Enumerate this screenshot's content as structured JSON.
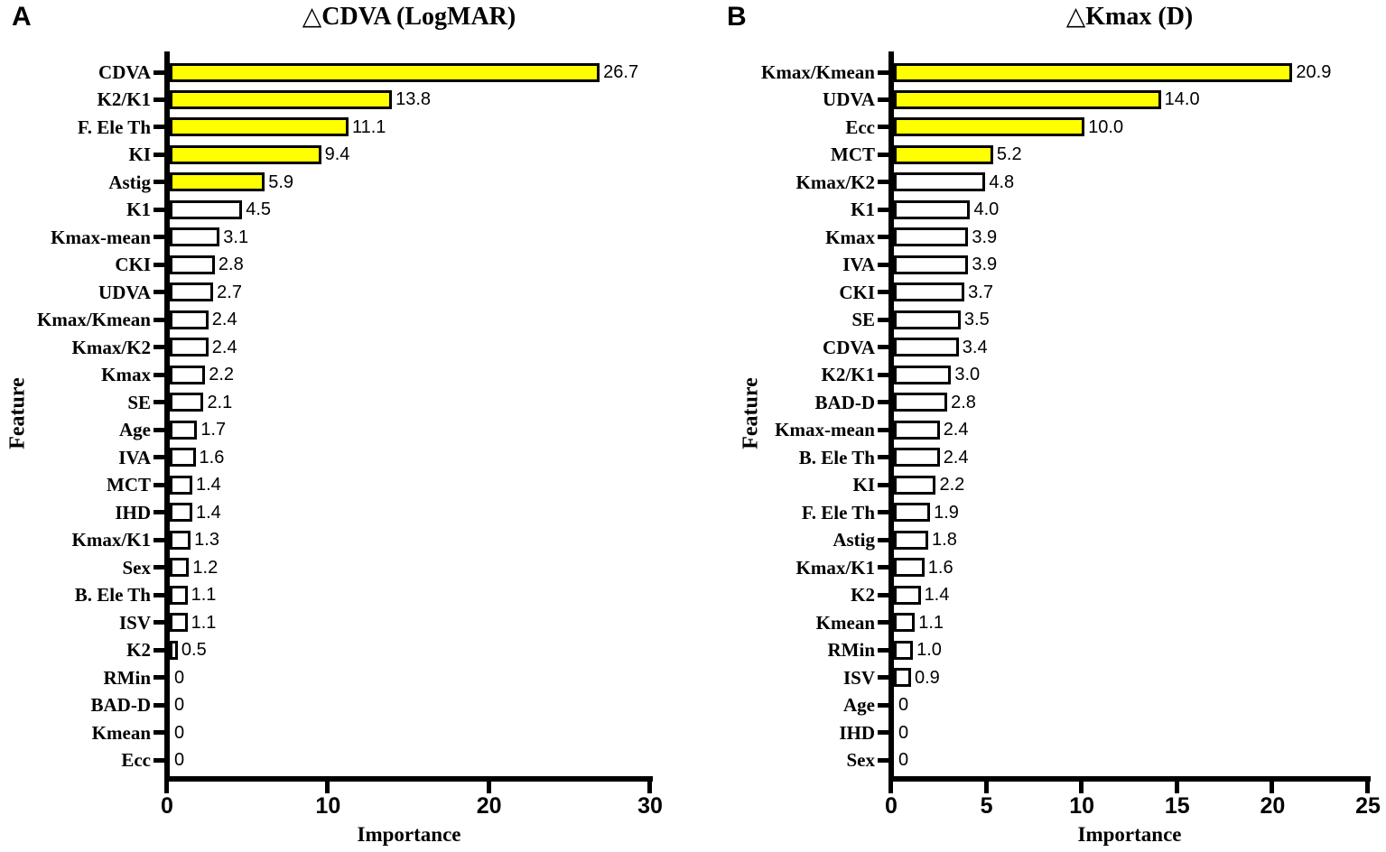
{
  "colors": {
    "highlight": "#FFFF00",
    "bar_fill": "#FFFFFF",
    "ink": "#000000",
    "background": "#FFFFFF"
  },
  "chart_data": [
    {
      "type": "bar",
      "orientation": "horizontal",
      "panel_label": "A",
      "title": "△CDVA (LogMAR)",
      "xlabel": "Importance",
      "ylabel": "Feature",
      "xlim": [
        0,
        30
      ],
      "x_tick_labels": [
        "0",
        "10",
        "20",
        "30"
      ],
      "grid": false,
      "legend": "none",
      "categories": [
        "CDVA",
        "K2/K1",
        "F. Ele Th",
        "KI",
        "Astig",
        "K1",
        "Kmax-mean",
        "CKI",
        "UDVA",
        "Kmax/Kmean",
        "Kmax/K2",
        "Kmax",
        "SE",
        "Age",
        "IVA",
        "MCT",
        "IHD",
        "Kmax/K1",
        "Sex",
        "B. Ele Th",
        "ISV",
        "K2",
        "RMin",
        "BAD-D",
        "Kmean",
        "Ecc"
      ],
      "values": [
        26.7,
        13.8,
        11.1,
        9.4,
        5.9,
        4.5,
        3.1,
        2.8,
        2.7,
        2.4,
        2.4,
        2.2,
        2.1,
        1.7,
        1.6,
        1.4,
        1.4,
        1.3,
        1.2,
        1.1,
        1.1,
        0.5,
        0,
        0,
        0,
        0
      ],
      "value_labels": [
        "26.7",
        "13.8",
        "11.1",
        "9.4",
        "5.9",
        "4.5",
        "3.1",
        "2.8",
        "2.7",
        "2.4",
        "2.4",
        "2.2",
        "2.1",
        "1.7",
        "1.6",
        "1.4",
        "1.4",
        "1.3",
        "1.2",
        "1.1",
        "1.1",
        "0.5",
        "0",
        "0",
        "0",
        "0"
      ],
      "highlighted": [
        true,
        true,
        true,
        true,
        true,
        false,
        false,
        false,
        false,
        false,
        false,
        false,
        false,
        false,
        false,
        false,
        false,
        false,
        false,
        false,
        false,
        false,
        false,
        false,
        false,
        false
      ]
    },
    {
      "type": "bar",
      "orientation": "horizontal",
      "panel_label": "B",
      "title": "△Kmax (D)",
      "xlabel": "Importance",
      "ylabel": "Feature",
      "xlim": [
        0,
        25
      ],
      "x_tick_labels": [
        "0",
        "5",
        "10",
        "15",
        "20",
        "25"
      ],
      "grid": false,
      "legend": "none",
      "categories": [
        "Kmax/Kmean",
        "UDVA",
        "Ecc",
        "MCT",
        "Kmax/K2",
        "K1",
        "Kmax",
        "IVA",
        "CKI",
        "SE",
        "CDVA",
        "K2/K1",
        "BAD-D",
        "Kmax-mean",
        "B. Ele Th",
        "KI",
        "F. Ele Th",
        "Astig",
        "Kmax/K1",
        "K2",
        "Kmean",
        "RMin",
        "ISV",
        "Age",
        "IHD",
        "Sex"
      ],
      "values": [
        20.9,
        14.0,
        10.0,
        5.2,
        4.8,
        4.0,
        3.9,
        3.9,
        3.7,
        3.5,
        3.4,
        3.0,
        2.8,
        2.4,
        2.4,
        2.2,
        1.9,
        1.8,
        1.6,
        1.4,
        1.1,
        1.0,
        0.9,
        0,
        0,
        0
      ],
      "value_labels": [
        "20.9",
        "14.0",
        "10.0",
        "5.2",
        "4.8",
        "4.0",
        "3.9",
        "3.9",
        "3.7",
        "3.5",
        "3.4",
        "3.0",
        "2.8",
        "2.4",
        "2.4",
        "2.2",
        "1.9",
        "1.8",
        "1.6",
        "1.4",
        "1.1",
        "1.0",
        "0.9",
        "0",
        "0",
        "0"
      ],
      "highlighted": [
        true,
        true,
        true,
        true,
        false,
        false,
        false,
        false,
        false,
        false,
        false,
        false,
        false,
        false,
        false,
        false,
        false,
        false,
        false,
        false,
        false,
        false,
        false,
        false,
        false,
        false
      ]
    }
  ]
}
